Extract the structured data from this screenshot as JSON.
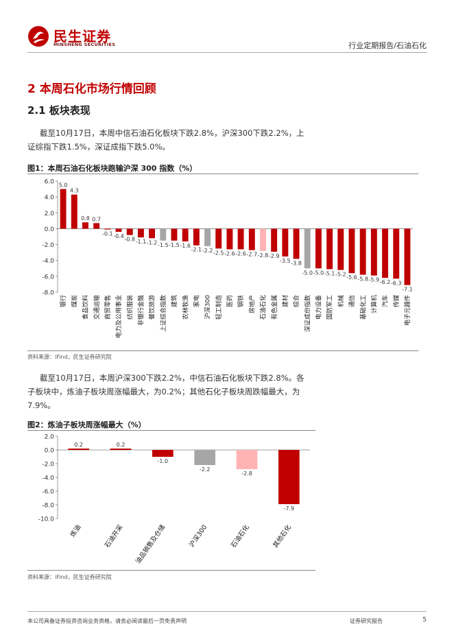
{
  "header": {
    "logo_cn": "民生证券",
    "logo_en": "MINSHENG SECURITIES",
    "report_type": "行业定期报告/石油石化"
  },
  "section": {
    "title": "2 本周石化市场行情回顾",
    "subtitle": "2.1 板块表现"
  },
  "paragraphs": {
    "p1_line1": "截至10月17日，本周中信石油石化板块下跌2.8%，沪深300下跌2.2%，上",
    "p1_line2": "证综指下跌1.5%，深证成指下跌5.0%。",
    "p2_line1": "截至10月17日，本周沪深300下跌2.2%，中信石油石化板块下跌2.8%。各",
    "p2_line2": "子板块中，炼油子板块周涨幅最大，为0.2%；其他石化子板块周跌幅最大，为",
    "p2_line3": "7.9%。"
  },
  "figure1": {
    "title": "图1：本周石油石化板块跑输沪深 300 指数（%）",
    "source": "资料来源：iFind，民生证券研究院"
  },
  "figure2": {
    "title": "图2：炼油子板块周涨幅最大（%）",
    "source": "资料来源：iFind，民生证券研究院"
  },
  "chart_data": [
    {
      "type": "bar",
      "title": "图1：本周石油石化板块跑输沪深 300 指数（%）",
      "ylim": [
        -8.0,
        6.0
      ],
      "yticks": [
        "6.0",
        "4.0",
        "2.0",
        "0.0",
        "-2.0",
        "-4.0",
        "-6.0",
        "-8.0"
      ],
      "categories": [
        "银行",
        "煤炭",
        "食品饮料",
        "交通运输",
        "商贸零售",
        "电力及公用事业",
        "纺织服装",
        "非银行金融",
        "餐饮旅游",
        "上证综合指数",
        "建筑",
        "农林牧渔",
        "家电",
        "沪深300",
        "轻工制造",
        "医药",
        "钢铁",
        "房地产",
        "石油石化",
        "有色金属",
        "建材",
        "综合",
        "深证成份指数",
        "电力设备",
        "国防军工",
        "机械",
        "通信",
        "基础化工",
        "计算机",
        "汽车",
        "传媒",
        "电子元器件"
      ],
      "values": [
        5.0,
        4.3,
        0.8,
        0.7,
        -0.1,
        -0.4,
        -0.8,
        -1.1,
        -1.2,
        -1.5,
        -1.5,
        -1.6,
        -2.1,
        -2.2,
        -2.5,
        -2.6,
        -2.6,
        -2.7,
        -2.8,
        -2.9,
        -3.5,
        -3.8,
        -5.0,
        -5.0,
        -5.1,
        -5.2,
        -5.6,
        -5.8,
        -5.9,
        -6.2,
        -6.3,
        -7.1
      ],
      "labels": [
        "5.0",
        "4.3",
        "0.8",
        "0.7",
        "-0.1",
        "-0.4",
        "-0.8",
        "-1.1",
        "-1.2",
        "-1.5",
        "-1.5",
        "-1.6",
        "-2.1",
        "-2.2",
        "-2.5",
        "-2.6",
        "-2.6",
        "-2.7",
        "-2.8",
        "-2.9",
        "-3.5",
        "-3.8",
        "-5.0",
        "-5.0",
        "-5.1",
        "-5.2",
        "-5.6",
        "-5.8",
        "-5.9",
        "-6.2",
        "-6.3",
        "-7.1"
      ],
      "colors": [
        "#c00000",
        "#c00000",
        "#c00000",
        "#c00000",
        "#c00000",
        "#c00000",
        "#c00000",
        "#c00000",
        "#c00000",
        "#a6a6a6",
        "#c00000",
        "#c00000",
        "#c00000",
        "#a6a6a6",
        "#c00000",
        "#c00000",
        "#c00000",
        "#c00000",
        "#ffb3b3",
        "#c00000",
        "#c00000",
        "#c00000",
        "#a6a6a6",
        "#c00000",
        "#c00000",
        "#c00000",
        "#c00000",
        "#c00000",
        "#c00000",
        "#c00000",
        "#c00000",
        "#c00000"
      ],
      "xlabel": "",
      "ylabel": ""
    },
    {
      "type": "bar",
      "title": "图2：炼油子板块周涨幅最大（%）",
      "ylim": [
        -10.0,
        2.0
      ],
      "yticks": [
        "2.0",
        "0.0",
        "-2.0",
        "-4.0",
        "-6.0",
        "-8.0",
        "-10.0"
      ],
      "categories": [
        "炼油",
        "石油开采",
        "油品销售及仓储",
        "沪深300",
        "石油石化",
        "其他石化"
      ],
      "values": [
        0.2,
        0.2,
        -1.0,
        -2.2,
        -2.8,
        -7.9
      ],
      "labels": [
        "0.2",
        "0.2",
        "-1.0",
        "-2.2",
        "-2.8",
        "-7.9"
      ],
      "colors": [
        "#c00000",
        "#c00000",
        "#c00000",
        "#a6a6a6",
        "#ffb3b3",
        "#c00000"
      ],
      "xlabel": "",
      "ylabel": ""
    }
  ],
  "footer": {
    "disclaimer": "本公司具备证券投资咨询业务资格，请务必阅读最后一页免责声明",
    "doc_type": "证券研究报告",
    "page": "5"
  }
}
